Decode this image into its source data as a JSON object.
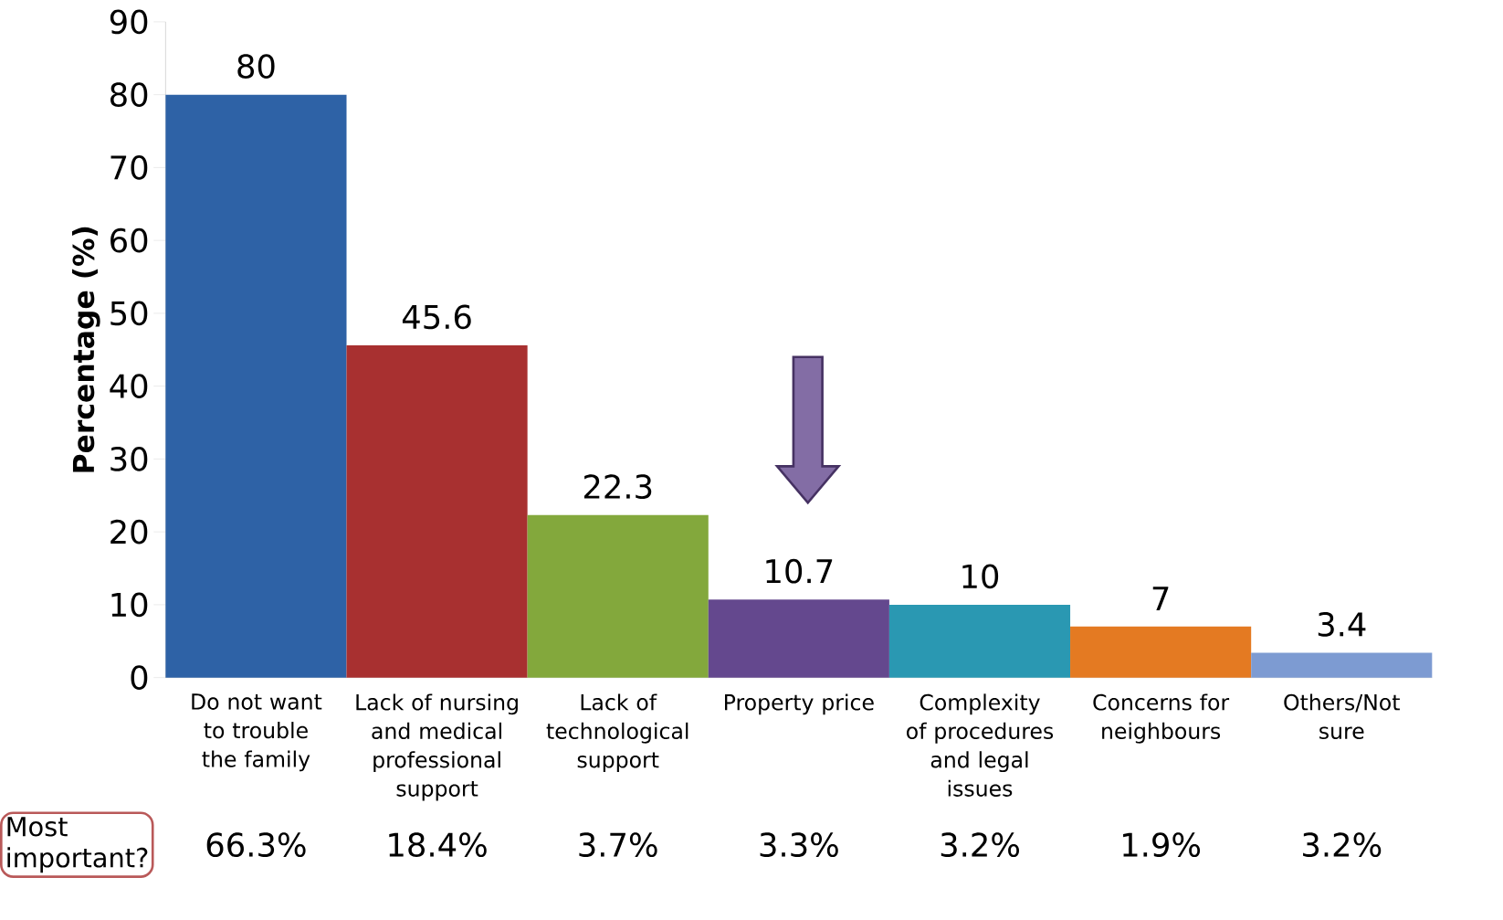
{
  "chart_data": {
    "type": "bar",
    "ylabel": "Percentage (%)",
    "categories": [
      "Do not want to trouble the family",
      "Lack of nursing and medical professional support",
      "Lack of technological support",
      "Property price",
      "Complexity of procedures and legal issues",
      "Concerns for neighbours",
      "Others/Not sure"
    ],
    "values": [
      80,
      45.6,
      22.3,
      10.7,
      10,
      7,
      3.4
    ],
    "colors": [
      "#2e62a6",
      "#a83030",
      "#83a83c",
      "#64488e",
      "#2a98b2",
      "#e47a22",
      "#7d9bd2"
    ],
    "ylim": [
      0,
      90
    ],
    "yticks": [
      0,
      10,
      20,
      30,
      40,
      50,
      60,
      70,
      80,
      90
    ],
    "data_labels": true,
    "grid": false,
    "annotations": [
      "Most important?",
      "66.3%",
      "18.4%",
      "3.7%",
      "3.3%",
      "3.2%",
      "1.9%",
      "3.2%"
    ]
  }
}
